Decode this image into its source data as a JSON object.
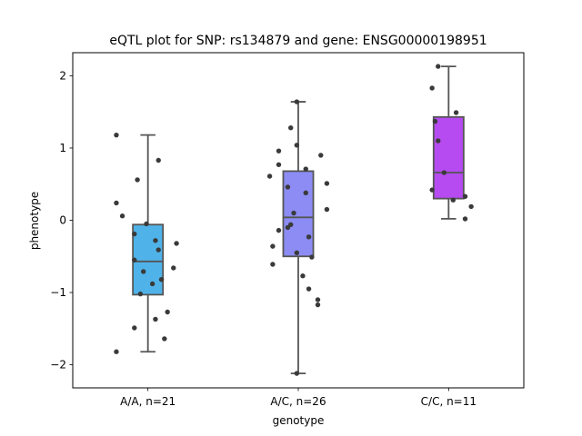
{
  "chart_data": {
    "type": "box",
    "title": "eQTL plot for SNP: rs134879 and gene: ENSG00000198951",
    "xlabel": "genotype",
    "ylabel": "phenotype",
    "ylim": [
      -2.32,
      2.32
    ],
    "yticks": [
      {
        "value": -2,
        "label": "−2"
      },
      {
        "value": -1,
        "label": "−1"
      },
      {
        "value": 0,
        "label": "0"
      },
      {
        "value": 1,
        "label": "1"
      },
      {
        "value": 2,
        "label": "2"
      }
    ],
    "categories": [
      "A/A, n=21",
      "A/C, n=26",
      "C/C, n=11"
    ],
    "colors": [
      "#4fb3ea",
      "#8c8cf4",
      "#b54bf0"
    ],
    "point_color": "#3a3a3a",
    "series": [
      {
        "category": "A/A, n=21",
        "whisker_low": -1.82,
        "q1": -1.03,
        "median": -0.57,
        "q3": -0.06,
        "whisker_high": 1.18,
        "points": [
          {
            "x": -0.21,
            "y": 1.18
          },
          {
            "x": 0.07,
            "y": 0.83
          },
          {
            "x": -0.07,
            "y": 0.56
          },
          {
            "x": -0.21,
            "y": 0.24
          },
          {
            "x": -0.17,
            "y": 0.06
          },
          {
            "x": -0.01,
            "y": -0.05
          },
          {
            "x": -0.09,
            "y": -0.19
          },
          {
            "x": 0.05,
            "y": -0.28
          },
          {
            "x": 0.19,
            "y": -0.32
          },
          {
            "x": 0.07,
            "y": -0.41
          },
          {
            "x": -0.09,
            "y": -0.55
          },
          {
            "x": 0.17,
            "y": -0.66
          },
          {
            "x": -0.03,
            "y": -0.71
          },
          {
            "x": 0.09,
            "y": -0.82
          },
          {
            "x": 0.03,
            "y": -0.88
          },
          {
            "x": -0.05,
            "y": -1.02
          },
          {
            "x": 0.13,
            "y": -1.27
          },
          {
            "x": 0.05,
            "y": -1.37
          },
          {
            "x": -0.09,
            "y": -1.49
          },
          {
            "x": 0.11,
            "y": -1.64
          },
          {
            "x": -0.21,
            "y": -1.82
          }
        ]
      },
      {
        "category": "A/C, n=26",
        "whisker_low": -2.12,
        "q1": -0.5,
        "median": 0.04,
        "q3": 0.68,
        "whisker_high": 1.64,
        "points": [
          {
            "x": -0.01,
            "y": 1.64
          },
          {
            "x": -0.05,
            "y": 1.28
          },
          {
            "x": -0.01,
            "y": 1.04
          },
          {
            "x": -0.13,
            "y": 0.96
          },
          {
            "x": 0.15,
            "y": 0.9
          },
          {
            "x": -0.13,
            "y": 0.77
          },
          {
            "x": 0.05,
            "y": 0.71
          },
          {
            "x": -0.19,
            "y": 0.61
          },
          {
            "x": 0.19,
            "y": 0.51
          },
          {
            "x": -0.07,
            "y": 0.46
          },
          {
            "x": 0.05,
            "y": 0.38
          },
          {
            "x": 0.19,
            "y": 0.15
          },
          {
            "x": -0.03,
            "y": 0.1
          },
          {
            "x": -0.05,
            "y": -0.06
          },
          {
            "x": -0.13,
            "y": -0.14
          },
          {
            "x": -0.07,
            "y": -0.1
          },
          {
            "x": 0.07,
            "y": -0.23
          },
          {
            "x": -0.17,
            "y": -0.36
          },
          {
            "x": -0.01,
            "y": -0.45
          },
          {
            "x": 0.09,
            "y": -0.51
          },
          {
            "x": -0.17,
            "y": -0.61
          },
          {
            "x": 0.03,
            "y": -0.77
          },
          {
            "x": 0.07,
            "y": -0.95
          },
          {
            "x": 0.13,
            "y": -1.1
          },
          {
            "x": 0.13,
            "y": -1.17
          },
          {
            "x": -0.01,
            "y": -2.12
          }
        ]
      },
      {
        "category": "C/C, n=11",
        "whisker_low": 0.02,
        "q1": 0.3,
        "median": 0.66,
        "q3": 1.43,
        "whisker_high": 2.13,
        "points": [
          {
            "x": -0.07,
            "y": 2.13
          },
          {
            "x": -0.11,
            "y": 1.83
          },
          {
            "x": 0.05,
            "y": 1.49
          },
          {
            "x": -0.09,
            "y": 1.37
          },
          {
            "x": -0.07,
            "y": 1.1
          },
          {
            "x": -0.03,
            "y": 0.66
          },
          {
            "x": -0.11,
            "y": 0.42
          },
          {
            "x": 0.11,
            "y": 0.33
          },
          {
            "x": 0.03,
            "y": 0.28
          },
          {
            "x": 0.15,
            "y": 0.19
          },
          {
            "x": 0.11,
            "y": 0.02
          }
        ]
      }
    ]
  }
}
